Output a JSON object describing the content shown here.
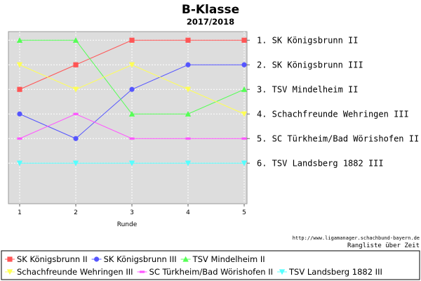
{
  "chart_data": {
    "type": "line",
    "title": "B-Klasse",
    "subtitle": "2017/2018",
    "xlabel": "Runde",
    "ylabel": "",
    "x": [
      1,
      2,
      3,
      4,
      5
    ],
    "xlim": [
      0.8,
      5.05
    ],
    "ylim": [
      0.65,
      7.65
    ],
    "y_inverted": true,
    "grid": true,
    "legend_position": "bottom",
    "colors": {
      "plot_background": "#dddddd",
      "grid": "#ffffff",
      "border": "#999999"
    },
    "series": [
      {
        "name": "SK Königsbrunn II",
        "values": [
          3,
          2,
          1,
          1,
          1
        ],
        "color": "#ff5555",
        "marker": "square"
      },
      {
        "name": "SK Königsbrunn III",
        "values": [
          4,
          5,
          3,
          2,
          2
        ],
        "color": "#5555ff",
        "marker": "circle"
      },
      {
        "name": "TSV Mindelheim II",
        "values": [
          1,
          1,
          4,
          4,
          3
        ],
        "color": "#55ff55",
        "marker": "triangle-up"
      },
      {
        "name": "Schachfreunde Wehringen III",
        "values": [
          2,
          3,
          2,
          3,
          4
        ],
        "color": "#ffff55",
        "marker": "triangle-down"
      },
      {
        "name": "SC Türkheim/Bad Wörishofen II",
        "values": [
          5,
          4,
          5,
          5,
          5
        ],
        "color": "#ff55ff",
        "marker": "dash"
      },
      {
        "name": "TSV Landsberg 1882 III",
        "values": [
          6,
          6,
          6,
          6,
          6
        ],
        "color": "#55ffff",
        "marker": "triangle-down"
      }
    ],
    "rank_labels": [
      "1. SK Königsbrunn II",
      "2. SK Königsbrunn III",
      "3. TSV Mindelheim II",
      "4. Schachfreunde Wehringen III",
      "5. SC Türkheim/Bad Wörishofen II",
      "6. TSV Landsberg 1882 III"
    ],
    "source_url": "http://www.ligamanager.schachbund-bayern.de",
    "caption": "Rangliste über Zeit"
  }
}
